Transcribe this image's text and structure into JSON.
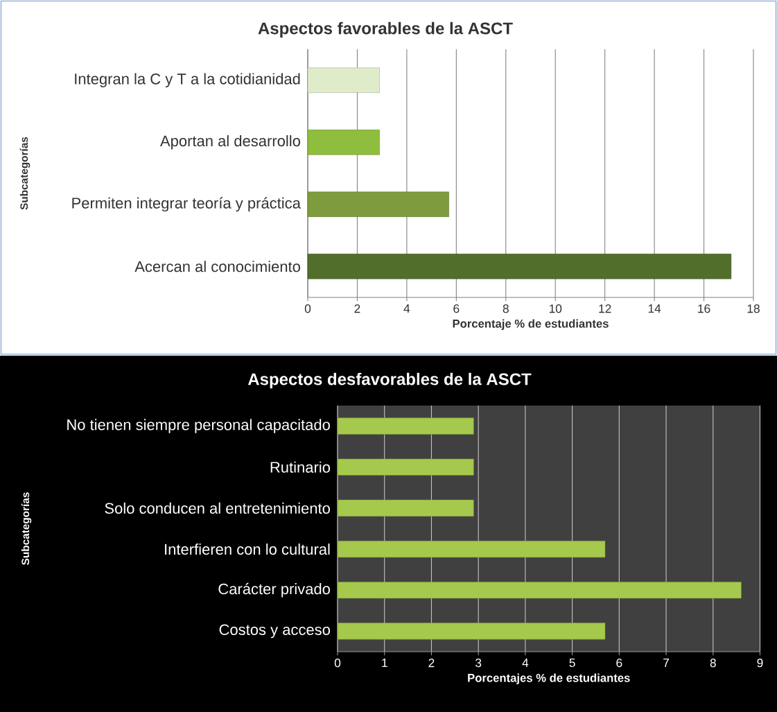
{
  "chart_data": [
    {
      "type": "bar",
      "orientation": "horizontal",
      "title": "Aspectos favorables de la ASCT",
      "xlabel": "Porcentaje % de estudiantes",
      "ylabel": "Subcategorías",
      "categories": [
        "Integran la C y T a la cotidianidad",
        "Aportan al desarrollo",
        "Permiten integrar teoría y práctica",
        "Acercan al conocimiento"
      ],
      "values": [
        2.9,
        2.9,
        5.7,
        17.1
      ],
      "colors": [
        "#e0ebca",
        "#8fbd3e",
        "#7e9c3e",
        "#526e2b"
      ],
      "xlim": [
        0,
        18
      ],
      "xticks": [
        0,
        2,
        4,
        6,
        8,
        10,
        12,
        14,
        16,
        18
      ],
      "grid": "x"
    },
    {
      "type": "bar",
      "orientation": "horizontal",
      "title": "Aspectos desfavorables de la ASCT",
      "xlabel": "Porcentajes % de estudiantes",
      "ylabel": "Subcategorías",
      "categories": [
        "No tienen siempre personal capacitado",
        "Rutinario",
        "Solo conducen al entretenimiento",
        "Interfieren con lo cultural",
        "Carácter privado",
        "Costos y acceso"
      ],
      "values": [
        2.9,
        2.9,
        2.9,
        5.7,
        8.6,
        5.7
      ],
      "color": "#a5c94c",
      "xlim": [
        0,
        9
      ],
      "xticks": [
        0,
        1,
        2,
        3,
        4,
        5,
        6,
        7,
        8,
        9
      ],
      "grid": "x"
    }
  ]
}
